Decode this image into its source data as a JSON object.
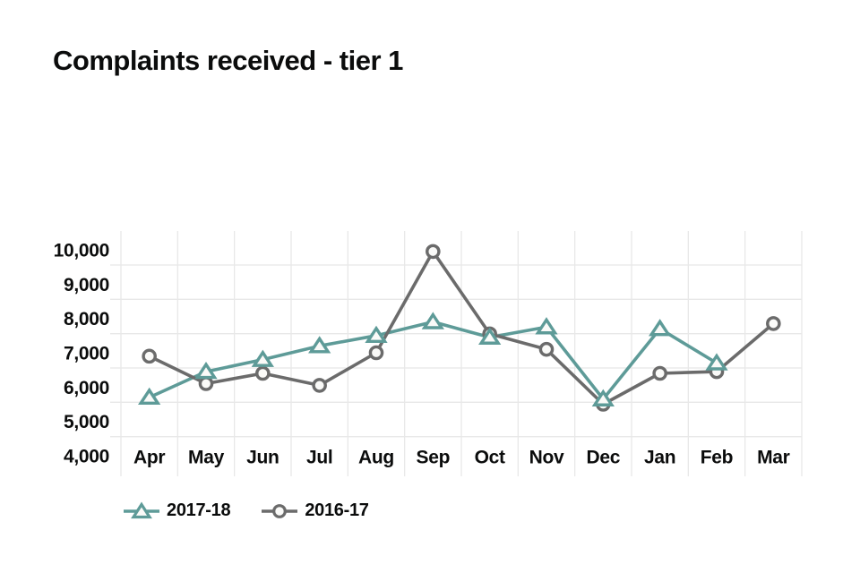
{
  "title": "Complaints received - tier 1",
  "legend": {
    "position": "bottom-left",
    "entries": [
      {
        "label": "2017-18",
        "marker": "triangle",
        "color": "#5E9B98"
      },
      {
        "label": "2016-17",
        "marker": "circle",
        "color": "#6B6B6B"
      }
    ]
  },
  "chart_data": {
    "type": "line",
    "title": "Complaints received - tier 1",
    "categories": [
      "Apr",
      "May",
      "Jun",
      "Jul",
      "Aug",
      "Sep",
      "Oct",
      "Nov",
      "Dec",
      "Jan",
      "Feb",
      "Mar"
    ],
    "series": [
      {
        "name": "2017-18",
        "color": "#5E9B98",
        "marker": "triangle",
        "values": [
          5700,
          6450,
          6800,
          7200,
          7500,
          7900,
          7450,
          7750,
          5650,
          7700,
          6700,
          null
        ]
      },
      {
        "name": "2016-17",
        "color": "#6B6B6B",
        "marker": "circle",
        "values": [
          6900,
          6100,
          6400,
          6050,
          7000,
          9950,
          7550,
          7100,
          5500,
          6400,
          6450,
          7850
        ]
      }
    ],
    "xlabel": "",
    "ylabel": "",
    "ylim": [
      4000,
      10000
    ],
    "ytick_interval": 1000,
    "ytick_labels": [
      "10,000",
      "9,000",
      "8,000",
      "7,000",
      "6,000",
      "5,000",
      "4,000"
    ],
    "grid": true,
    "gridline_color": "#E8E8E8",
    "axis_label_color": "#0B0C0C",
    "marker_fill": "#FAFAF8",
    "legend_position": "bottom-left"
  }
}
